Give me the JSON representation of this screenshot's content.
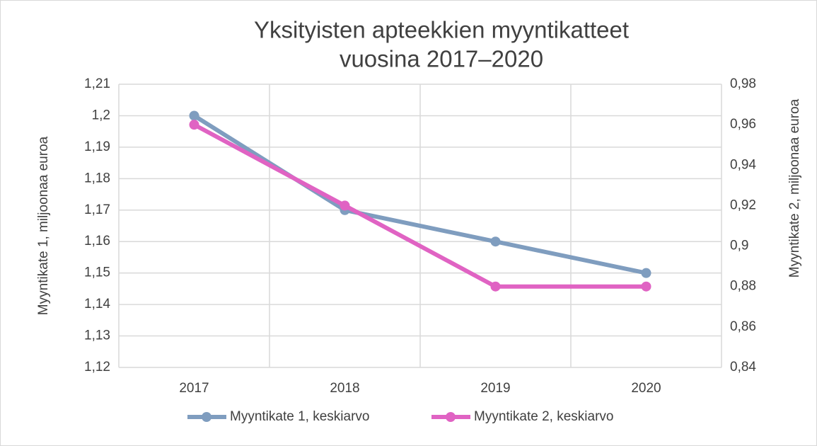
{
  "chart_data": {
    "type": "line",
    "title": [
      "Yksityisten apteekkien myyntikatteet",
      "vuosina 2017–2020"
    ],
    "ylabel": "Myyntikate  1, miljoonaa euroa",
    "y2label": "Myyntikate  2, miljoonaa euroa",
    "categories": [
      "2017",
      "2018",
      "2019",
      "2020"
    ],
    "series": [
      {
        "name": "Myyntikate 1, keskiarvo",
        "color": "#7f9dbf",
        "values": [
          1.2,
          1.17,
          1.16,
          1.15
        ]
      },
      {
        "name": "Myyntikate 2, keskiarvo",
        "color": "#e063c3",
        "values": [
          0.96,
          0.92,
          0.88,
          0.88
        ],
        "axis": "y2"
      }
    ],
    "ylim": [
      1.12,
      1.21
    ],
    "yticks": [
      {
        "value": 1.12,
        "label": "1,12"
      },
      {
        "value": 1.13,
        "label": "1,13"
      },
      {
        "value": 1.14,
        "label": "1,14"
      },
      {
        "value": 1.15,
        "label": "1,15"
      },
      {
        "value": 1.16,
        "label": "1,16"
      },
      {
        "value": 1.17,
        "label": "1,17"
      },
      {
        "value": 1.18,
        "label": "1,18"
      },
      {
        "value": 1.19,
        "label": "1,19"
      },
      {
        "value": 1.2,
        "label": "1,2"
      },
      {
        "value": 1.21,
        "label": "1,21"
      }
    ],
    "y2lim": [
      0.84,
      0.98
    ],
    "y2ticks": [
      {
        "value": 0.84,
        "label": "0,84"
      },
      {
        "value": 0.86,
        "label": "0,86"
      },
      {
        "value": 0.88,
        "label": "0,88"
      },
      {
        "value": 0.9,
        "label": "0,9"
      },
      {
        "value": 0.92,
        "label": "0,92"
      },
      {
        "value": 0.94,
        "label": "0,94"
      },
      {
        "value": 0.96,
        "label": "0,96"
      },
      {
        "value": 0.98,
        "label": "0,98"
      }
    ],
    "grid": true,
    "legend": "bottom"
  }
}
